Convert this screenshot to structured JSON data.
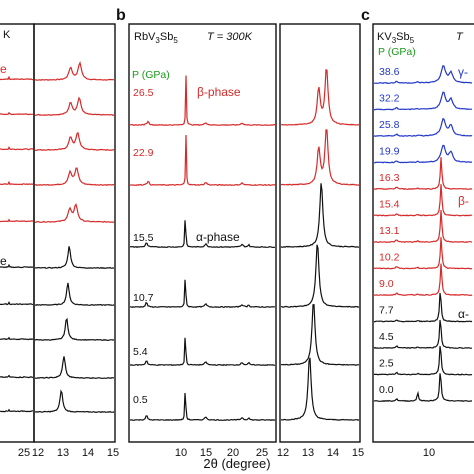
{
  "chart_data": [
    {
      "type": "line",
      "panel": "a",
      "title": "K",
      "phase_labels": [
        {
          "text": "e",
          "color": "#d62a2a"
        },
        {
          "text": "e",
          "color": "#111111"
        }
      ],
      "x_ticks_left": [
        "25"
      ],
      "x_ticks_right": [
        "12",
        "13",
        "14",
        "15"
      ],
      "series": [
        {
          "color": "#d62a2a",
          "peak1": 13.35,
          "peak2": 13.7
        },
        {
          "color": "#d62a2a",
          "peak1": 13.35,
          "peak2": 13.68
        },
        {
          "color": "#d62a2a",
          "peak1": 13.35,
          "peak2": 13.62
        },
        {
          "color": "#d62a2a",
          "peak1": 13.33,
          "peak2": 13.58
        },
        {
          "color": "#d62a2a",
          "peak1": 13.32,
          "peak2": 13.55
        },
        {
          "color": "#111111",
          "peak1": 13.3
        },
        {
          "color": "#111111",
          "peak1": 13.25
        },
        {
          "color": "#111111",
          "peak1": 13.2
        },
        {
          "color": "#111111",
          "peak1": 13.1
        },
        {
          "color": "#111111",
          "peak1": 13.0
        }
      ]
    },
    {
      "type": "line",
      "panel": "b",
      "compound_main": "RbV",
      "compound_sub1": "3",
      "compound_mid": "Sb",
      "compound_sub2": "5",
      "temperature": "T = 300K",
      "pressure_header": "P (GPa)",
      "phase_labels": [
        {
          "text": "β-phase",
          "color": "#d62a2a"
        },
        {
          "text": "α-phase",
          "color": "#111111"
        }
      ],
      "x_ticks_left": [
        "10",
        "15",
        "20",
        "25"
      ],
      "x_ticks_right": [
        "12",
        "13",
        "14",
        "15"
      ],
      "series": [
        {
          "pressure": "26.5",
          "color": "#d62a2a",
          "phase": "beta"
        },
        {
          "pressure": "22.9",
          "color": "#d62a2a",
          "phase": "beta"
        },
        {
          "pressure": "15.5",
          "color": "#111111",
          "phase": "alpha",
          "peak_right": 13.55
        },
        {
          "pressure": "10.7",
          "color": "#111111",
          "phase": "alpha",
          "peak_right": 13.4
        },
        {
          "pressure": "5.4",
          "color": "#111111",
          "phase": "alpha",
          "peak_right": 13.25
        },
        {
          "pressure": "0.5",
          "color": "#111111",
          "phase": "alpha",
          "peak_right": 13.1
        }
      ]
    },
    {
      "type": "line",
      "panel": "c",
      "compound_main": "KV",
      "compound_sub1": "3",
      "compound_mid": "Sb",
      "compound_sub2": "5",
      "temperature": "T",
      "pressure_header": "P (GPa)",
      "phase_labels": [
        {
          "text": "γ-",
          "color": "#2238c8"
        },
        {
          "text": "β-",
          "color": "#d62a2a"
        },
        {
          "text": "α-",
          "color": "#111111"
        }
      ],
      "x_ticks_left": [
        "10"
      ],
      "series": [
        {
          "pressure": "38.6",
          "color": "#2238c8"
        },
        {
          "pressure": "32.2",
          "color": "#2238c8"
        },
        {
          "pressure": "25.8",
          "color": "#2238c8"
        },
        {
          "pressure": "19.9",
          "color": "#2238c8"
        },
        {
          "pressure": "16.3",
          "color": "#d62a2a"
        },
        {
          "pressure": "15.4",
          "color": "#d62a2a"
        },
        {
          "pressure": "13.1",
          "color": "#d62a2a"
        },
        {
          "pressure": "10.2",
          "color": "#d62a2a"
        },
        {
          "pressure": "9.0",
          "color": "#d62a2a"
        },
        {
          "pressure": "7.7",
          "color": "#111111"
        },
        {
          "pressure": "4.5",
          "color": "#111111"
        },
        {
          "pressure": "2.5",
          "color": "#111111"
        },
        {
          "pressure": "0.0",
          "color": "#111111"
        }
      ]
    }
  ],
  "xlabel": "2θ (degree)",
  "colors": {
    "alpha": "#111111",
    "beta": "#d62a2a",
    "gamma": "#2238c8",
    "pressure_header": "#1a9a1a"
  }
}
